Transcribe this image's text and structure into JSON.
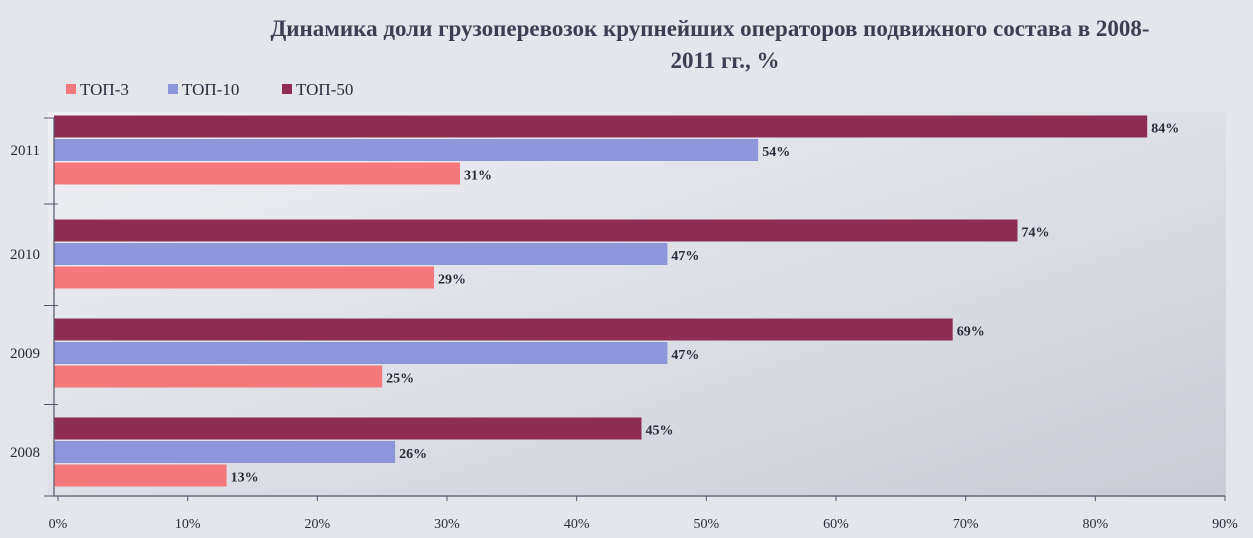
{
  "chart_data": {
    "type": "bar",
    "orientation": "horizontal",
    "title": "Динамика доли грузоперевозок крупнейших операторов подвижного состава в 2008-2011 гг., %",
    "title_lines": [
      "Динамика доли грузоперевозок крупнейших операторов подвижного состава в 2008-",
      "2011 гг., %"
    ],
    "xlabel": "",
    "ylabel": "",
    "categories": [
      "2011",
      "2010",
      "2009",
      "2008"
    ],
    "series": [
      {
        "name": "ТОП-50",
        "values": [
          84,
          74,
          69,
          45
        ],
        "labels": [
          "84%",
          "74%",
          "69%",
          "45%"
        ],
        "color": "#8e2c52"
      },
      {
        "name": "ТОП-10",
        "values": [
          54,
          47,
          47,
          26
        ],
        "labels": [
          "54%",
          "47%",
          "47%",
          "26%"
        ],
        "color": "#8d95db"
      },
      {
        "name": "ТОП-3",
        "values": [
          31,
          29,
          25,
          13
        ],
        "labels": [
          "31%",
          "29%",
          "25%",
          "13%"
        ],
        "color": "#f4787c"
      }
    ],
    "legend": {
      "position": "top-left",
      "order": [
        "ТОП-3",
        "ТОП-10",
        "ТОП-50"
      ]
    },
    "xlim": [
      0,
      90
    ],
    "xticks": [
      0,
      10,
      20,
      30,
      40,
      50,
      60,
      70,
      80,
      90
    ],
    "xtick_labels": [
      "0%",
      "10%",
      "20%",
      "30%",
      "40%",
      "50%",
      "60%",
      "70%",
      "80%",
      "90%"
    ],
    "grid": {
      "x": false,
      "y": false,
      "category_separators": true
    },
    "colors": {
      "background": "#e4e6ec",
      "plot_background": "#d9dbe2",
      "band_light": "#eef0f4",
      "axis": "#55576a",
      "text": "#2a2a3a",
      "title": "#3c3f52"
    }
  }
}
